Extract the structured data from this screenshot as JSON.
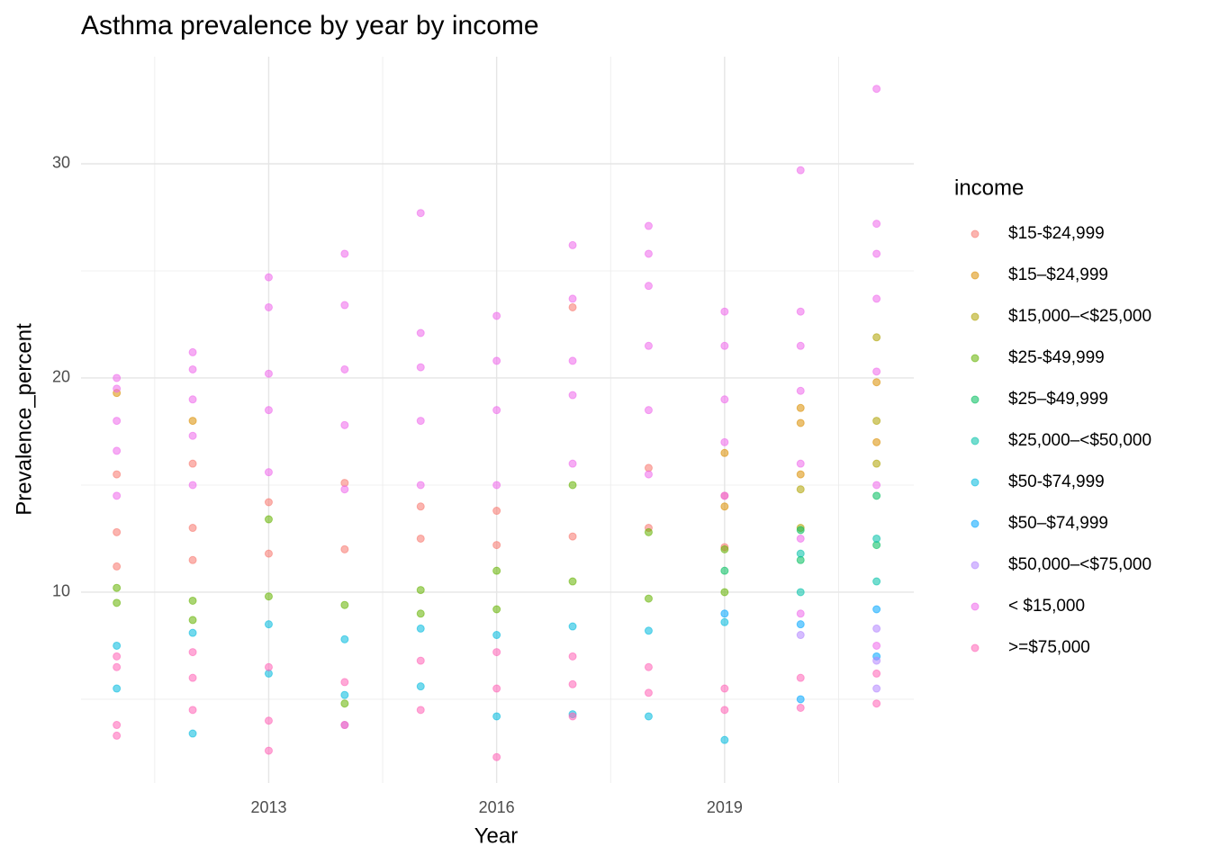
{
  "chart_data": {
    "type": "scatter",
    "title": "Asthma prevalence by year by income",
    "x_label": "Year",
    "y_label": "Prevalence_percent",
    "legend_title": "income",
    "legend": "right",
    "xlim": [
      2010.53,
      2021.49
    ],
    "ylim": [
      1.09,
      35
    ],
    "xticks": [
      2013,
      2016,
      2019
    ],
    "yticks": [
      10,
      20,
      30
    ],
    "minor_xgrid": [
      2011.5,
      2014.5,
      2017.5,
      2020.5
    ],
    "minor_ygrid": [
      5,
      15,
      25
    ],
    "grid": true,
    "opacity": 0.55,
    "series": [
      {
        "name": "$15-$24,999",
        "color": "#F8766D",
        "x": [
          2011,
          2011,
          2011,
          2012,
          2012,
          2012,
          2013,
          2013,
          2014,
          2014,
          2015,
          2015,
          2016,
          2016,
          2017,
          2017,
          2018,
          2018,
          2019,
          2019
        ],
        "values": [
          11.2,
          12.8,
          15.5,
          11.5,
          13.0,
          16.0,
          11.8,
          14.2,
          12.0,
          15.1,
          12.5,
          14.0,
          12.2,
          13.8,
          12.6,
          23.3,
          13.0,
          15.8,
          12.1,
          14.5
        ]
      },
      {
        "name": "$15–$24,999",
        "color": "#DB8E00",
        "x": [
          2011,
          2012,
          2019,
          2019,
          2020,
          2020,
          2020,
          2021,
          2021
        ],
        "values": [
          19.3,
          18.0,
          14.0,
          16.5,
          15.5,
          17.9,
          18.6,
          17.0,
          19.8
        ]
      },
      {
        "name": "$15,000–<$25,000",
        "color": "#AEA200",
        "x": [
          2020,
          2020,
          2021,
          2021,
          2021
        ],
        "values": [
          13.0,
          14.8,
          16.0,
          18.0,
          21.9
        ]
      },
      {
        "name": "$25-$49,999",
        "color": "#64B200",
        "x": [
          2011,
          2011,
          2012,
          2012,
          2013,
          2013,
          2014,
          2014,
          2015,
          2015,
          2016,
          2016,
          2017,
          2017,
          2018,
          2018,
          2019,
          2019
        ],
        "values": [
          9.5,
          10.2,
          8.7,
          9.6,
          9.8,
          13.4,
          9.4,
          4.8,
          10.1,
          9.0,
          9.2,
          11.0,
          10.5,
          15.0,
          9.7,
          12.8,
          10.0,
          12.0
        ]
      },
      {
        "name": "$25–$49,999",
        "color": "#00BD5C",
        "x": [
          2019,
          2020,
          2020,
          2021,
          2021
        ],
        "values": [
          11.0,
          11.5,
          12.9,
          12.2,
          14.5
        ]
      },
      {
        "name": "$25,000–<$50,000",
        "color": "#00C1A7",
        "x": [
          2020,
          2020,
          2021,
          2021
        ],
        "values": [
          10.0,
          11.8,
          10.5,
          12.5
        ]
      },
      {
        "name": "$50-$74,999",
        "color": "#00BADE",
        "x": [
          2011,
          2011,
          2012,
          2012,
          2013,
          2013,
          2014,
          2014,
          2015,
          2015,
          2016,
          2016,
          2017,
          2017,
          2018,
          2018,
          2019,
          2019
        ],
        "values": [
          7.5,
          5.5,
          8.1,
          3.4,
          8.5,
          6.2,
          7.8,
          5.2,
          8.3,
          5.6,
          8.0,
          4.2,
          8.4,
          4.3,
          8.2,
          4.2,
          8.6,
          3.1
        ]
      },
      {
        "name": "$50–$74,999",
        "color": "#00A6FF",
        "x": [
          2019,
          2020,
          2020,
          2021,
          2021
        ],
        "values": [
          9.0,
          8.5,
          5.0,
          9.2,
          7.0
        ]
      },
      {
        "name": "$50,000–<$75,000",
        "color": "#B385FF",
        "x": [
          2014,
          2020,
          2021,
          2021,
          2021
        ],
        "values": [
          3.8,
          8.0,
          8.3,
          6.8,
          5.5
        ]
      },
      {
        "name": "< $15,000",
        "color": "#EF67EB",
        "x": [
          2011,
          2011,
          2011,
          2011,
          2011,
          2012,
          2012,
          2012,
          2012,
          2012,
          2013,
          2013,
          2013,
          2013,
          2013,
          2014,
          2014,
          2014,
          2014,
          2014,
          2015,
          2015,
          2015,
          2015,
          2015,
          2016,
          2016,
          2016,
          2016,
          2017,
          2017,
          2017,
          2017,
          2017,
          2018,
          2018,
          2018,
          2018,
          2018,
          2018,
          2019,
          2019,
          2019,
          2019,
          2019,
          2020,
          2020,
          2020,
          2020,
          2020,
          2020,
          2020,
          2021,
          2021,
          2021,
          2021,
          2021,
          2021,
          2021
        ],
        "values": [
          14.5,
          16.6,
          18.0,
          19.5,
          20.0,
          15.0,
          17.3,
          19.0,
          20.4,
          21.2,
          15.6,
          18.5,
          20.2,
          23.3,
          24.7,
          14.8,
          17.8,
          20.4,
          23.4,
          25.8,
          15.0,
          18.0,
          20.5,
          22.1,
          27.7,
          15.0,
          18.5,
          20.8,
          22.9,
          16.0,
          19.2,
          20.8,
          23.7,
          26.2,
          15.5,
          18.5,
          21.5,
          24.3,
          25.8,
          27.1,
          14.5,
          17.0,
          19.0,
          21.5,
          23.1,
          9.0,
          12.5,
          16.0,
          19.4,
          21.5,
          23.1,
          29.7,
          7.5,
          15.0,
          20.3,
          23.7,
          25.8,
          27.2,
          33.5
        ]
      },
      {
        "name": ">=$75,000",
        "color": "#FF63B6",
        "x": [
          2011,
          2011,
          2011,
          2011,
          2012,
          2012,
          2012,
          2013,
          2013,
          2013,
          2014,
          2014,
          2015,
          2015,
          2016,
          2016,
          2016,
          2017,
          2017,
          2017,
          2018,
          2018,
          2019,
          2019,
          2020,
          2020,
          2021,
          2021
        ],
        "values": [
          3.3,
          3.8,
          6.5,
          7.0,
          4.5,
          6.0,
          7.2,
          2.6,
          4.0,
          6.5,
          3.8,
          5.8,
          4.5,
          6.8,
          2.3,
          5.5,
          7.2,
          4.2,
          5.7,
          7.0,
          5.3,
          6.5,
          4.5,
          5.5,
          4.6,
          6.0,
          4.8,
          6.2
        ]
      }
    ]
  }
}
